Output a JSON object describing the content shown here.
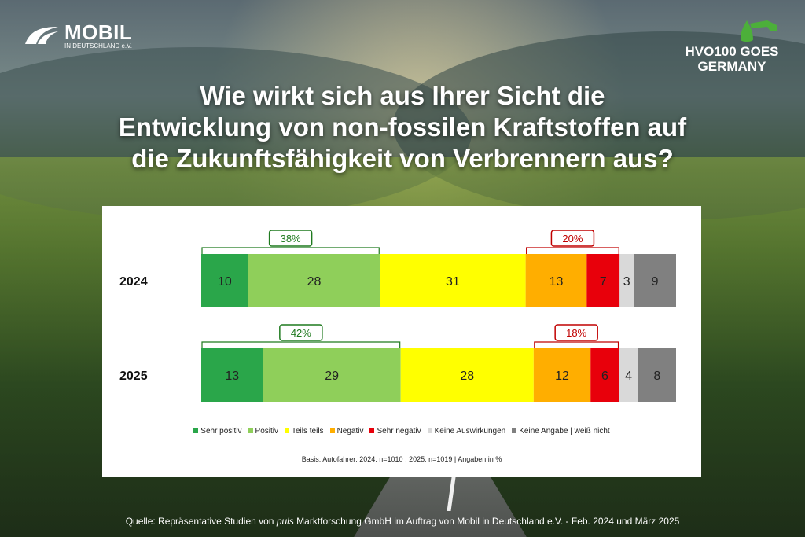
{
  "brand": {
    "name": "MOBIL",
    "sub": "IN DEUTSCHLAND e.V."
  },
  "campaign": {
    "line1": "HVO100 GOES",
    "line2": "GERMANY"
  },
  "headline": {
    "line1": "Wie wirkt sich aus Ihrer Sicht die",
    "line2": "Entwicklung von non-fossilen Kraftstoffen auf",
    "line3": "die Zukunftsfähigkeit von Verbrennern aus?"
  },
  "chart_data": {
    "type": "bar",
    "orientation": "horizontal-stacked-100",
    "categories": [
      "2024",
      "2025"
    ],
    "series": [
      {
        "name": "Sehr positiv",
        "color": "#2aa64a",
        "values": [
          10,
          13
        ]
      },
      {
        "name": "Positiv",
        "color": "#8fcf5a",
        "values": [
          28,
          29
        ]
      },
      {
        "name": "Teils teils",
        "color": "#ffff00",
        "values": [
          31,
          28
        ]
      },
      {
        "name": "Negativ",
        "color": "#ffae00",
        "values": [
          13,
          12
        ]
      },
      {
        "name": "Sehr negativ",
        "color": "#e8000b",
        "values": [
          7,
          6
        ]
      },
      {
        "name": "Keine Auswirkungen",
        "color": "#d9d9d9",
        "values": [
          3,
          4
        ]
      },
      {
        "name": "Keine Angabe | weiß nicht",
        "color": "#808080",
        "values": [
          9,
          8
        ]
      }
    ],
    "annotations": [
      {
        "category": "2024",
        "label": "38%",
        "group": "positive",
        "color": "#1f7a1f"
      },
      {
        "category": "2024",
        "label": "20%",
        "group": "negative",
        "color": "#c00000"
      },
      {
        "category": "2025",
        "label": "42%",
        "group": "positive",
        "color": "#1f7a1f"
      },
      {
        "category": "2025",
        "label": "18%",
        "group": "negative",
        "color": "#c00000"
      }
    ]
  },
  "basis": "Basis: Autofahrer: 2024: n=1010 ; 2025: n=1019 | Angaben in %",
  "source": {
    "before": "Quelle: Repräsentative Studien von ",
    "italic": "puls",
    "after": " Marktforschung GmbH im Auftrag von Mobil in Deutschland e.V. - Feb. 2024 und März 2025"
  }
}
